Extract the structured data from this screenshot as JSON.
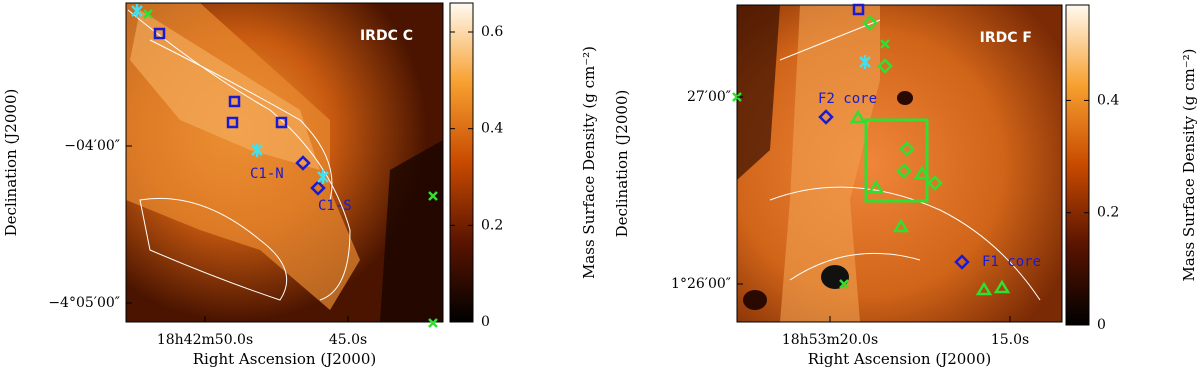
{
  "chart_data": [
    {
      "type": "image",
      "title": "IRDC C",
      "xlabel": "Right Ascension (J2000)",
      "ylabel": "Declination (J2000)",
      "xticklabels": [
        "18h42m50.0s",
        "45.0s"
      ],
      "yticklabels": [
        "−04′00″",
        "−4°05′00″"
      ],
      "colorbar_label": "Mass Surface Density (g cm⁻²)",
      "clim": [
        0,
        0.66
      ],
      "cticks": [
        0,
        0.2,
        0.4,
        0.6
      ],
      "annotations": [
        "C1-N",
        "C1-S"
      ]
    },
    {
      "type": "image",
      "title": "IRDC F",
      "xlabel": "Right Ascension (J2000)",
      "ylabel": "Declination (J2000)",
      "xticklabels": [
        "18h53m20.0s",
        "15.0s"
      ],
      "yticklabels": [
        "27′00″",
        "1°26′00″"
      ],
      "colorbar_label": "Mass Surface Density (g cm⁻²)",
      "clim": [
        0,
        0.57
      ],
      "cticks": [
        0,
        0.2,
        0.4
      ],
      "annotations": [
        "F2 core",
        "F1 core"
      ]
    }
  ]
}
